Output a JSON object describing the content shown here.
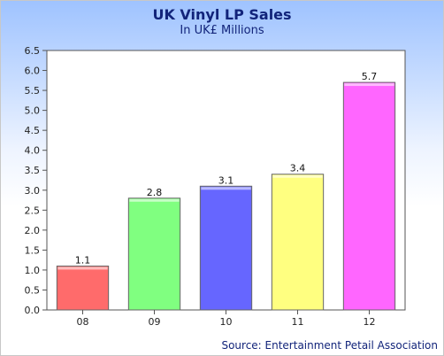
{
  "title": "UK Vinyl LP Sales",
  "subtitle": "In UK£ Millions",
  "source": "Source: Entertainment Petail Association",
  "chart_data": {
    "type": "bar",
    "title": "UK Vinyl LP Sales",
    "subtitle": "In UK£ Millions",
    "categories": [
      "08",
      "09",
      "10",
      "11",
      "12"
    ],
    "values": [
      1.1,
      2.8,
      3.1,
      3.4,
      5.7
    ],
    "value_labels": [
      "1.1",
      "2.8",
      "3.1",
      "3.4",
      "5.7"
    ],
    "bar_colors": [
      "#ff6b6b",
      "#80ff80",
      "#6666ff",
      "#ffff80",
      "#ff66ff"
    ],
    "y_ticks": [
      "0.0",
      "0.5",
      "1.0",
      "1.5",
      "2.0",
      "2.5",
      "3.0",
      "3.5",
      "4.0",
      "4.5",
      "5.0",
      "5.5",
      "6.0",
      "6.5"
    ],
    "ylim": [
      0,
      6.5
    ],
    "xlabel": "",
    "ylabel": "",
    "grid": false,
    "legend": "none"
  }
}
